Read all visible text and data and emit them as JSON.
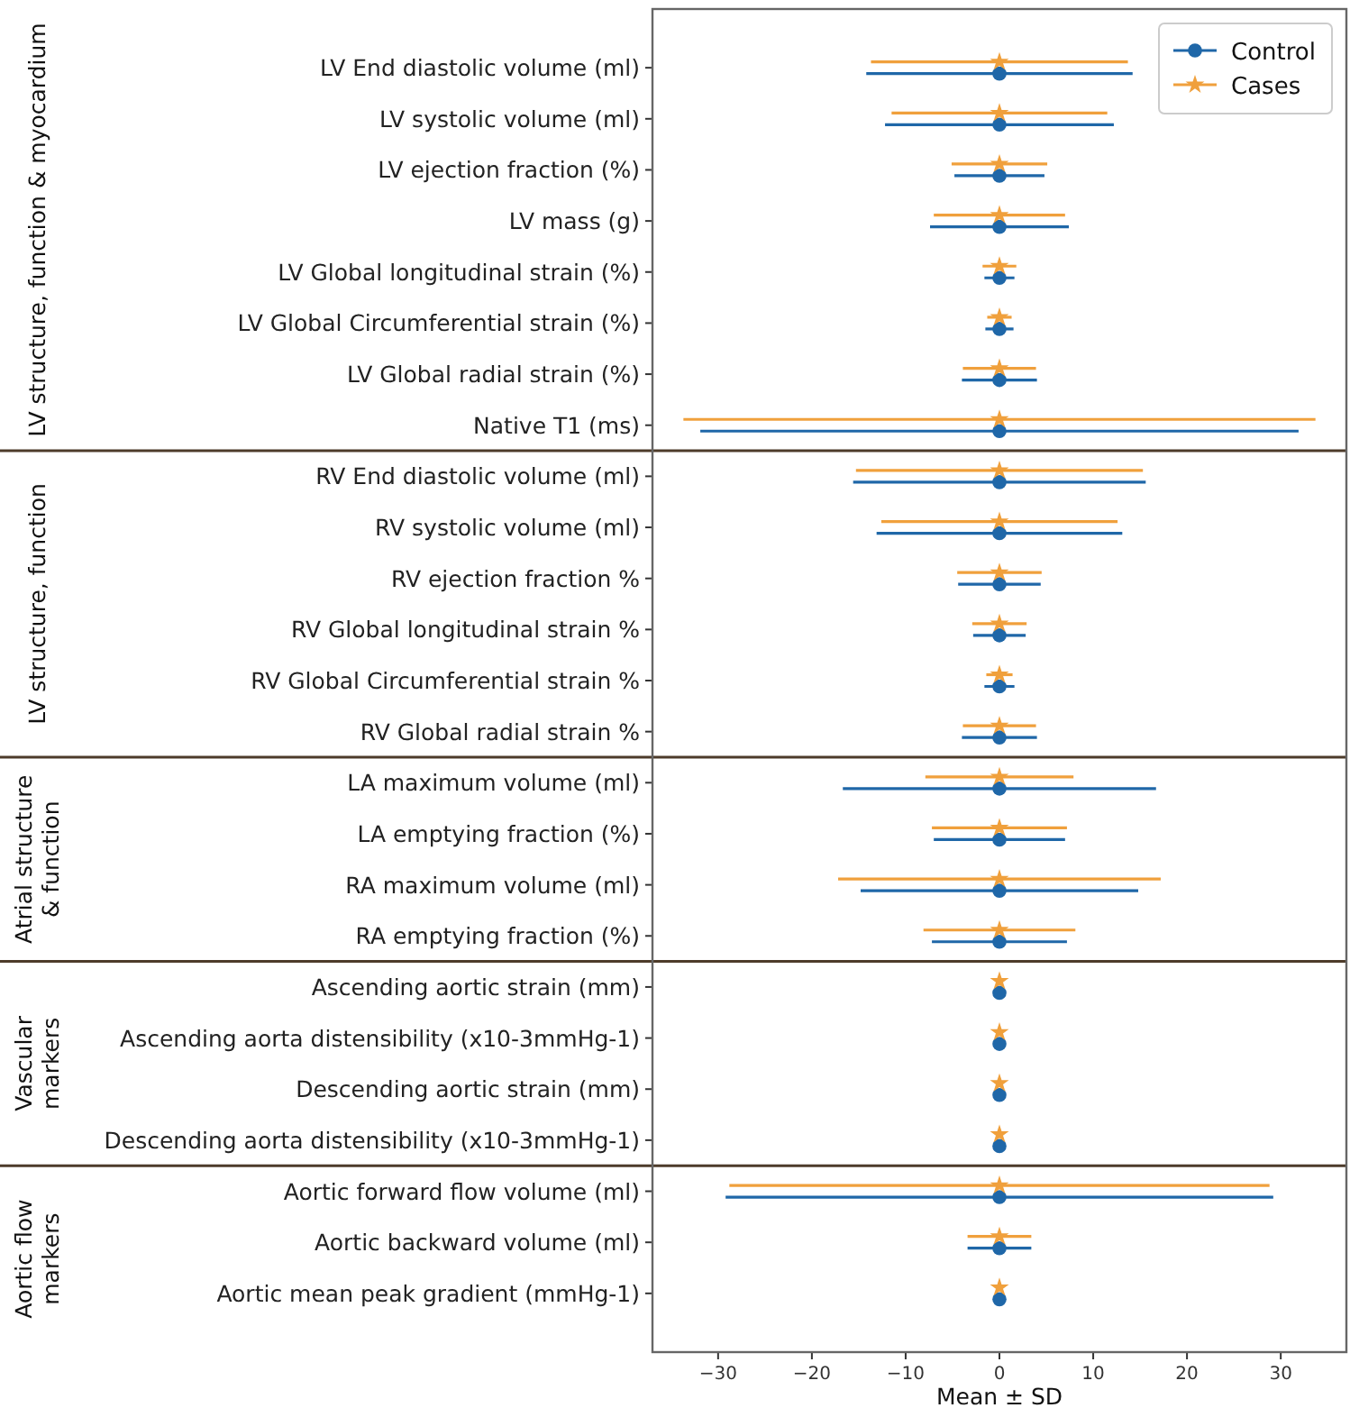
{
  "chart_data": {
    "type": "scatter",
    "orientation": "horizontal",
    "xlabel": "Mean ± SD",
    "categories": [
      "LV End diastolic volume (ml)",
      "LV systolic volume (ml)",
      "LV ejection fraction (%)",
      "LV mass (g)",
      "LV Global longitudinal strain (%)",
      "LV Global Circumferential strain (%)",
      "LV Global radial strain (%)",
      "Native T1 (ms)",
      "RV End diastolic volume (ml)",
      "RV systolic volume (ml)",
      "RV ejection fraction %",
      "RV Global longitudinal strain %",
      "RV Global Circumferential strain %",
      "RV Global radial strain %",
      "LA maximum volume (ml)",
      "LA emptying fraction (%)",
      "RA maximum volume (ml)",
      "RA emptying fraction (%)",
      "Ascending aortic strain (mm)",
      "Ascending aorta distensibility (x10-3mmHg-1)",
      "Descending aortic strain (mm)",
      "Descending aorta distensibility (x10-3mmHg-1)",
      "Aortic forward flow volume (ml)",
      "Aortic backward volume (ml)",
      "Aortic mean peak gradient (mmHg-1)"
    ],
    "series": [
      {
        "name": "Control",
        "color": "#1f67a8",
        "marker": "circle",
        "values": [
          0,
          0,
          0,
          0,
          0,
          0,
          0,
          0,
          0,
          0,
          0,
          0,
          0,
          0,
          0,
          0,
          0,
          0,
          0,
          0,
          0,
          0,
          0,
          0,
          0
        ],
        "errors": [
          14.2,
          12.2,
          4.8,
          7.4,
          1.6,
          1.5,
          4.0,
          31.9,
          15.6,
          13.1,
          4.4,
          2.8,
          1.6,
          4.0,
          16.7,
          7.0,
          14.8,
          7.2,
          null,
          null,
          null,
          null,
          29.2,
          3.4,
          null
        ]
      },
      {
        "name": "Cases",
        "color": "#f0a03c",
        "marker": "star",
        "values": [
          0,
          0,
          0,
          0,
          0,
          0,
          0,
          0,
          0,
          0,
          0,
          0,
          0,
          0,
          0,
          0,
          0,
          0,
          0,
          0,
          0,
          0,
          0,
          0,
          0
        ],
        "errors": [
          13.7,
          11.5,
          5.1,
          7.0,
          1.8,
          1.3,
          3.9,
          33.7,
          15.3,
          12.6,
          4.5,
          2.9,
          1.4,
          3.9,
          7.9,
          7.2,
          17.2,
          8.1,
          null,
          null,
          null,
          null,
          28.8,
          3.4,
          null
        ]
      }
    ],
    "xlim": [
      -37,
      37
    ],
    "xticks": [
      -30,
      -20,
      -10,
      0,
      10,
      20,
      30
    ],
    "legend": "top right",
    "grid": false,
    "annotations": [
      "LV structure, function & myocardium",
      "LV structure, function",
      "Atrial structure\n& function",
      "Vascular\nmarkers",
      "Aortic flow\nmarkers"
    ]
  }
}
